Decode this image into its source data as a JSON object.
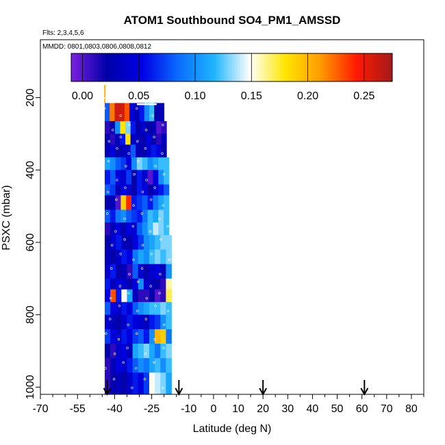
{
  "chart_data": {
    "type": "heatmap",
    "title": "ATOM1 Southbound SO4_PM1_AMSSD",
    "subtitle_flights": "Flts: 2,3,4,5,6",
    "subtitle_dates": "MMDD: 0801,0803,0806,0808,0812",
    "xlabel": "Latitude (deg N)",
    "ylabel": "PSXC (mbar)",
    "xlim": [
      -70,
      85
    ],
    "ylim": [
      1020,
      40
    ],
    "x_ticks": [
      -70,
      -55,
      -40,
      -25,
      -10,
      0,
      10,
      20,
      30,
      40,
      50,
      60,
      70,
      80
    ],
    "x_tick_labels": [
      "-70",
      "-55",
      "-40",
      "-25",
      "-10",
      "0",
      "10",
      "20",
      "30",
      "40",
      "50",
      "60",
      "70",
      "80"
    ],
    "y_ticks": [
      200,
      400,
      600,
      800,
      1000
    ],
    "y_tick_labels": [
      "200",
      "400",
      "600",
      "800",
      "1000"
    ],
    "colorbar": {
      "range": [
        -0.01,
        0.275
      ],
      "ticks": [
        0.0,
        0.05,
        0.1,
        0.15,
        0.2,
        0.25
      ],
      "tick_labels": [
        "0.00",
        "0.05",
        "0.10",
        "0.15",
        "0.20",
        "0.25"
      ],
      "colors": [
        "#7b1fe0",
        "#0000a8",
        "#0000e6",
        "#0b6cff",
        "#1eb4ff",
        "#ffffff",
        "#ffe600",
        "#ff9a00",
        "#ff1a00",
        "#a31a1a"
      ]
    },
    "profile_markers_lat": [
      -43,
      -14,
      20,
      61
    ],
    "rows": [
      {
        "p_top": 215,
        "p_bot": 265,
        "lat_min": -44,
        "lat_max": -20,
        "values": [
          0.08,
          0.22,
          0.26,
          0.26,
          0.23,
          0.05,
          0.03,
          0.06,
          0.1,
          0.12,
          0.02,
          0.03
        ]
      },
      {
        "p_top": 265,
        "p_bot": 300,
        "lat_min": -44,
        "lat_max": -19,
        "values": [
          0.01,
          0.02,
          0.1,
          0.18,
          0.13,
          0.06,
          0.02,
          0.04,
          0.02,
          0.03,
          0.0,
          0.01
        ]
      },
      {
        "p_top": 300,
        "p_bot": 330,
        "lat_min": -44,
        "lat_max": -19,
        "values": [
          0.02,
          0.01,
          0.03,
          0.06,
          0.18,
          0.04,
          0.03,
          0.02,
          0.05,
          0.02,
          0.01,
          0.03
        ]
      },
      {
        "p_top": 330,
        "p_bot": 365,
        "lat_min": -44,
        "lat_max": -19,
        "values": [
          0.03,
          0.05,
          0.02,
          0.03,
          0.04,
          0.08,
          0.03,
          0.02,
          0.04,
          0.06,
          0.05,
          0.02
        ]
      },
      {
        "p_top": 365,
        "p_bot": 400,
        "lat_min": -44,
        "lat_max": -18,
        "values": [
          0.11,
          0.1,
          0.08,
          0.07,
          0.05,
          0.1,
          0.13,
          0.12,
          0.1,
          0.11,
          0.12,
          0.12
        ]
      },
      {
        "p_top": 400,
        "p_bot": 440,
        "lat_min": -44,
        "lat_max": -18,
        "values": [
          0.06,
          0.08,
          0.05,
          0.04,
          0.07,
          0.02,
          0.06,
          0.04,
          0.0,
          0.05,
          0.1,
          0.12
        ]
      },
      {
        "p_top": 440,
        "p_bot": 470,
        "lat_min": -44,
        "lat_max": -18,
        "values": [
          0.08,
          0.07,
          0.03,
          0.05,
          0.04,
          0.02,
          0.06,
          0.05,
          0.02,
          0.04,
          0.06,
          0.08
        ]
      },
      {
        "p_top": 470,
        "p_bot": 510,
        "lat_min": -44,
        "lat_max": -18,
        "values": [
          0.02,
          0.03,
          0.0,
          0.19,
          0.24,
          0.06,
          0.07,
          0.08,
          0.06,
          0.09,
          0.11,
          0.12
        ]
      },
      {
        "p_top": 510,
        "p_bot": 545,
        "lat_min": -44,
        "lat_max": -18,
        "values": [
          0.08,
          0.06,
          0.09,
          0.1,
          0.08,
          0.07,
          0.06,
          0.09,
          0.12,
          0.11,
          0.13,
          0.12
        ]
      },
      {
        "p_top": 545,
        "p_bot": 580,
        "lat_min": -44,
        "lat_max": -18,
        "values": [
          0.01,
          0.03,
          0.05,
          0.02,
          0.05,
          0.04,
          0.08,
          0.1,
          0.12,
          0.14,
          0.13,
          0.12
        ]
      },
      {
        "p_top": 580,
        "p_bot": 620,
        "lat_min": -44,
        "lat_max": -17,
        "values": [
          0.02,
          0.04,
          0.06,
          0.03,
          0.02,
          0.05,
          0.07,
          0.1,
          0.11,
          0.12,
          0.13,
          0.13
        ]
      },
      {
        "p_top": 620,
        "p_bot": 660,
        "lat_min": -44,
        "lat_max": -17,
        "values": [
          0.03,
          0.02,
          0.04,
          0.06,
          0.05,
          0.09,
          0.11,
          0.1,
          0.12,
          0.13,
          0.12,
          0.13
        ]
      },
      {
        "p_top": 660,
        "p_bot": 700,
        "lat_min": -44,
        "lat_max": -17,
        "values": [
          0.04,
          0.06,
          0.02,
          0.03,
          0.01,
          0.08,
          0.04,
          0.02,
          0.04,
          0.05,
          0.03,
          0.1
        ]
      },
      {
        "p_top": 700,
        "p_bot": 730,
        "lat_min": -44,
        "lat_max": -17,
        "values": [
          0.06,
          0.03,
          0.05,
          0.04,
          0.02,
          0.05,
          0.1,
          0.04,
          0.03,
          0.02,
          0.01,
          0.16
        ]
      },
      {
        "p_top": 730,
        "p_bot": 765,
        "lat_min": -44,
        "lat_max": -17,
        "values": [
          0.05,
          0.23,
          0.06,
          0.15,
          0.11,
          0.03,
          0.01,
          0.01,
          0.02,
          0.0,
          0.01,
          0.17
        ]
      },
      {
        "p_top": 765,
        "p_bot": 800,
        "lat_min": -44,
        "lat_max": -17,
        "values": [
          0.08,
          0.05,
          0.04,
          0.06,
          0.05,
          0.08,
          0.1,
          0.11,
          0.12,
          0.12,
          0.13,
          0.12
        ]
      },
      {
        "p_top": 800,
        "p_bot": 840,
        "lat_min": -44,
        "lat_max": -17,
        "values": [
          0.04,
          0.03,
          0.02,
          0.04,
          0.06,
          0.05,
          0.04,
          0.03,
          0.06,
          0.07,
          0.1,
          0.12
        ]
      },
      {
        "p_top": 840,
        "p_bot": 880,
        "lat_min": -44,
        "lat_max": -17,
        "values": [
          0.07,
          0.05,
          0.04,
          0.06,
          0.05,
          0.07,
          0.08,
          0.06,
          0.1,
          0.2,
          0.19,
          0.09
        ]
      },
      {
        "p_top": 880,
        "p_bot": 920,
        "lat_min": -44,
        "lat_max": -17,
        "values": [
          0.02,
          0.01,
          0.04,
          0.05,
          0.03,
          0.11,
          0.12,
          0.13,
          0.11,
          0.09,
          0.12,
          0.13
        ]
      },
      {
        "p_top": 920,
        "p_bot": 960,
        "lat_min": -44,
        "lat_max": -17,
        "values": [
          0.01,
          0.03,
          0.05,
          0.04,
          0.06,
          0.08,
          0.1,
          0.09,
          0.11,
          0.12,
          0.1,
          0.12
        ]
      },
      {
        "p_top": 960,
        "p_bot": 1020,
        "lat_min": -44,
        "lat_max": -17,
        "values": [
          0.01,
          0.02,
          0.03,
          0.02,
          0.04,
          0.06,
          0.05,
          0.07,
          0.15,
          0.14,
          0.13,
          0.11
        ]
      }
    ]
  }
}
